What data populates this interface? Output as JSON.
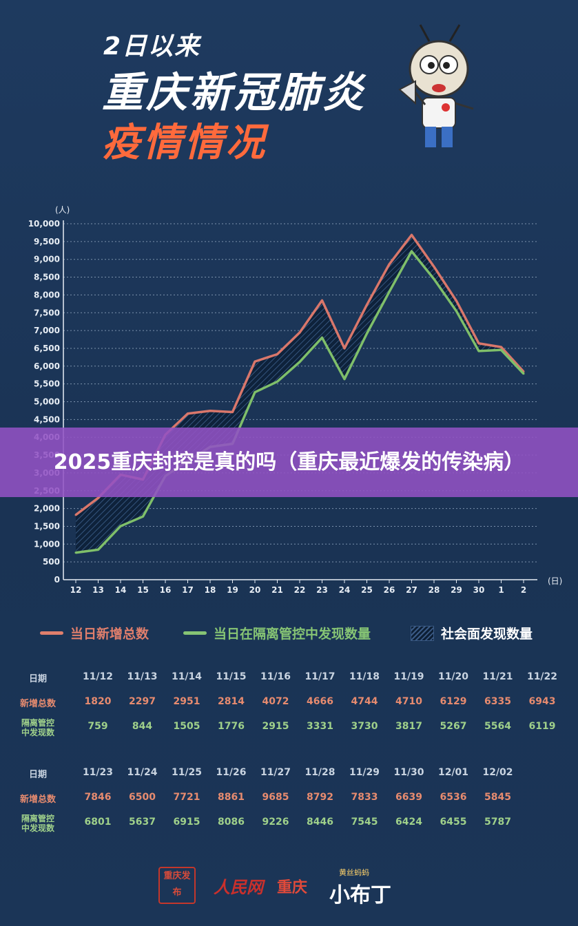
{
  "header": {
    "subtitle": "2日以来",
    "title": "重庆新冠肺炎",
    "title2": "疫情情况"
  },
  "banner": {
    "text": "2025重庆封控是真的吗（重庆最近爆发的传染病）"
  },
  "chart_data": {
    "type": "line",
    "ylabel_unit": "(人)",
    "xlabel_unit": "(日)",
    "ylim": [
      0,
      10000
    ],
    "yticks": [
      "0",
      "500",
      "1,000",
      "1,500",
      "2,000",
      "2,500",
      "3,000",
      "3,500",
      "4,000",
      "4,500",
      "5,000",
      "5,500",
      "6,000",
      "6,500",
      "7,000",
      "7,500",
      "8,000",
      "8,500",
      "9,000",
      "9,500",
      "10,000"
    ],
    "x": [
      "12",
      "13",
      "14",
      "15",
      "16",
      "17",
      "18",
      "19",
      "20",
      "21",
      "22",
      "23",
      "24",
      "25",
      "26",
      "27",
      "28",
      "29",
      "30",
      "1",
      "2"
    ],
    "series": [
      {
        "name": "当日新增总数",
        "color": "#d9776b",
        "values": [
          1820,
          2297,
          2951,
          2814,
          4072,
          4666,
          4744,
          4710,
          6129,
          6335,
          6943,
          7846,
          6500,
          7721,
          8861,
          9685,
          8792,
          7833,
          6639,
          6536,
          5845
        ]
      },
      {
        "name": "当日在隔离管控中发现数量",
        "color": "#7fbf6a",
        "values": [
          759,
          844,
          1505,
          1776,
          2915,
          3331,
          3730,
          3817,
          5267,
          5564,
          6119,
          6801,
          5637,
          6915,
          8086,
          9226,
          8446,
          7545,
          6424,
          6455,
          5787
        ]
      }
    ],
    "area_legend": "社会面发现数量",
    "grid": true
  },
  "legend": [
    {
      "label": "当日新增总数",
      "color": "#e07f6c"
    },
    {
      "label": "当日在隔离管控中发现数量",
      "color": "#86c474"
    },
    {
      "label": "社会面发现数量"
    }
  ],
  "table": {
    "head_date": "日期",
    "head_new": "新增总数",
    "head_iso_1": "隔离管控",
    "head_iso_2": "中发现数",
    "block1": {
      "dates": [
        "11/12",
        "11/13",
        "11/14",
        "11/15",
        "11/16",
        "11/17",
        "11/18",
        "11/19",
        "11/20",
        "11/21",
        "11/22"
      ],
      "new": [
        "1820",
        "2297",
        "2951",
        "2814",
        "4072",
        "4666",
        "4744",
        "4710",
        "6129",
        "6335",
        "6943"
      ],
      "iso": [
        "759",
        "844",
        "1505",
        "1776",
        "2915",
        "3331",
        "3730",
        "3817",
        "5267",
        "5564",
        "6119"
      ]
    },
    "block2": {
      "dates": [
        "11/23",
        "11/24",
        "11/25",
        "11/26",
        "11/27",
        "11/28",
        "11/29",
        "11/30",
        "12/01",
        "12/02"
      ],
      "new": [
        "7846",
        "6500",
        "7721",
        "8861",
        "9685",
        "8792",
        "7833",
        "6639",
        "6536",
        "5845"
      ],
      "iso": [
        "6801",
        "5637",
        "6915",
        "8086",
        "9226",
        "8446",
        "7545",
        "6424",
        "6455",
        "5787"
      ]
    }
  },
  "footer": {
    "logo1": "重庆发布",
    "logo2": "人民网",
    "logo2b": "重庆",
    "logo3_small": "黄丝蚂蚂",
    "logo3": "小布丁"
  }
}
